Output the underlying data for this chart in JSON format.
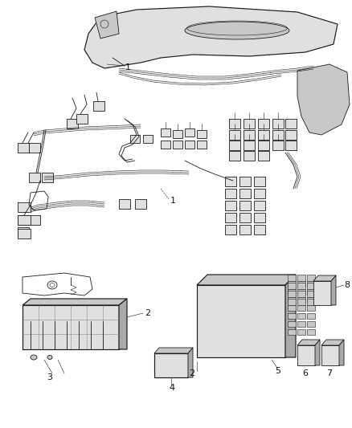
{
  "background_color": "#ffffff",
  "line_color": "#1a1a1a",
  "fig_width": 4.38,
  "fig_height": 5.33,
  "dpi": 100,
  "font_size": 7.5,
  "label_color": "#111111",
  "lw_hair": 0.4,
  "lw_thin": 0.6,
  "lw_med": 0.85,
  "lw_thick": 1.1,
  "gray_light": "#e0e0e0",
  "gray_mid": "#c8c8c8",
  "gray_dark": "#aaaaaa",
  "white": "#ffffff"
}
